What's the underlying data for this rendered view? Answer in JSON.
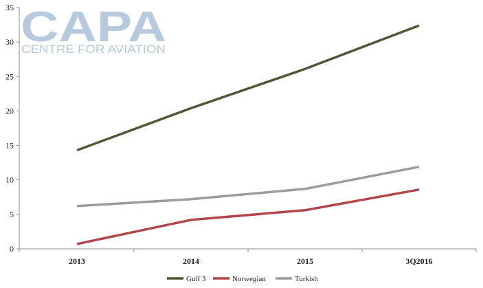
{
  "watermark": {
    "logo_text": "CAPA",
    "tagline": "CENTRE FOR AVIATION",
    "color": "#a9bfd8"
  },
  "chart_data": {
    "type": "line",
    "title": "",
    "xlabel": "",
    "ylabel": "",
    "categories": [
      "2013",
      "2014",
      "2015",
      "3Q2016"
    ],
    "ylim": [
      0,
      35
    ],
    "yticks": [
      0,
      5,
      10,
      15,
      20,
      25,
      30,
      35
    ],
    "grid": false,
    "legend_position": "bottom",
    "series": [
      {
        "name": "Gulf 3",
        "color": "#545438",
        "values": [
          14.3,
          20.4,
          26.1,
          32.4
        ]
      },
      {
        "name": "Norwegian",
        "color": "#b2474b",
        "values": [
          0.7,
          4.2,
          5.6,
          8.6
        ]
      },
      {
        "name": "Turkish",
        "color": "#9c9c9c",
        "values": [
          6.2,
          7.2,
          8.7,
          11.9
        ]
      }
    ]
  }
}
